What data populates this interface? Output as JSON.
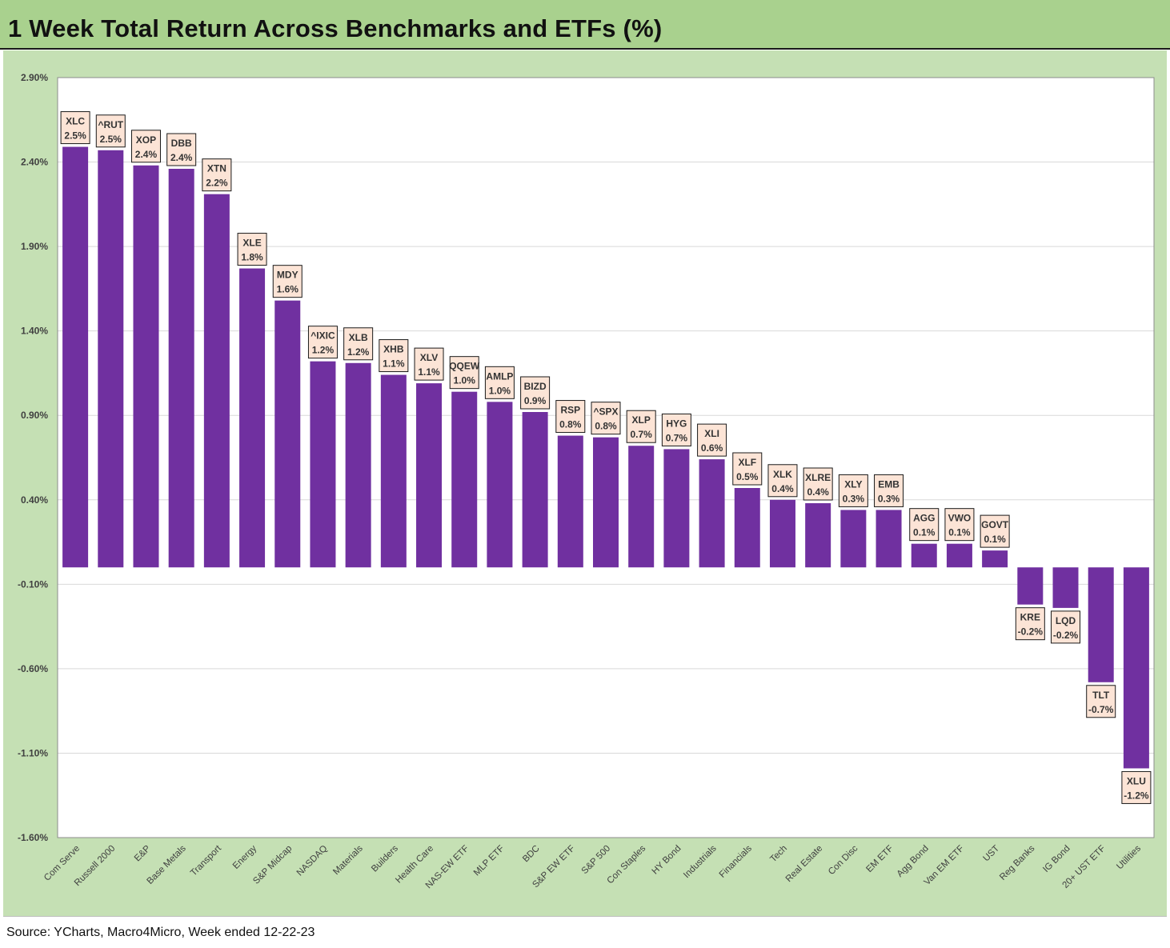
{
  "title": "1 Week Total Return Across Benchmarks and ETFs (%)",
  "source": "Source: YCharts, Macro4Micro, Week ended 12-22-23",
  "colors": {
    "bar": "#7030a0",
    "header_bg": "#a9d18e",
    "panel_bg": "#c5e0b4",
    "label_bg": "#fce4d6",
    "grid": "#d9d9d9"
  },
  "chart_data": {
    "type": "bar",
    "ylim": [
      -1.6,
      2.9
    ],
    "yticks": [
      "2.90%",
      "2.40%",
      "1.90%",
      "1.40%",
      "0.90%",
      "0.40%",
      "-0.10%",
      "-0.60%",
      "-1.10%",
      "-1.60%"
    ],
    "ytick_values": [
      2.9,
      2.4,
      1.9,
      1.4,
      0.9,
      0.4,
      -0.1,
      -0.6,
      -1.1,
      -1.6
    ],
    "grid": true,
    "categories": [
      "Com Serve",
      "Russell 2000",
      "E&P",
      "Base Metals",
      "Transport",
      "Energy",
      "S&P Midcap",
      "NASDAQ",
      "Materials",
      "Builders",
      "Health Care",
      "NAS-EW ETF",
      "MLP ETF",
      "BDC",
      "S&P EW ETF",
      "S&P 500",
      "Con Staples",
      "HY Bond",
      "Industrials",
      "Financials",
      "Tech",
      "Real Estate",
      "Con Disc",
      "EM ETF",
      "Agg Bond",
      "Van EM ETF",
      "UST",
      "Reg Banks",
      "IG Bond",
      "20+ UST ETF",
      "Utilities"
    ],
    "tickers": [
      "XLC",
      "^RUT",
      "XOP",
      "DBB",
      "XTN",
      "XLE",
      "MDY",
      "^IXIC",
      "XLB",
      "XHB",
      "XLV",
      "QQEW",
      "AMLP",
      "BIZD",
      "RSP",
      "^SPX",
      "XLP",
      "HYG",
      "XLI",
      "XLF",
      "XLK",
      "XLRE",
      "XLY",
      "EMB",
      "AGG",
      "VWO",
      "GOVT",
      "KRE",
      "LQD",
      "TLT",
      "XLU"
    ],
    "value_labels": [
      "2.5%",
      "2.5%",
      "2.4%",
      "2.4%",
      "2.2%",
      "1.8%",
      "1.6%",
      "1.2%",
      "1.2%",
      "1.1%",
      "1.1%",
      "1.0%",
      "1.0%",
      "0.9%",
      "0.8%",
      "0.8%",
      "0.7%",
      "0.7%",
      "0.6%",
      "0.5%",
      "0.4%",
      "0.4%",
      "0.3%",
      "0.3%",
      "0.1%",
      "0.1%",
      "0.1%",
      "-0.2%",
      "-0.2%",
      "-0.7%",
      "-1.2%"
    ],
    "values": [
      2.49,
      2.47,
      2.38,
      2.36,
      2.21,
      1.77,
      1.58,
      1.22,
      1.21,
      1.14,
      1.09,
      1.04,
      0.98,
      0.92,
      0.78,
      0.77,
      0.72,
      0.7,
      0.64,
      0.47,
      0.4,
      0.38,
      0.34,
      0.34,
      0.14,
      0.14,
      0.1,
      -0.22,
      -0.24,
      -0.68,
      -1.19
    ]
  }
}
